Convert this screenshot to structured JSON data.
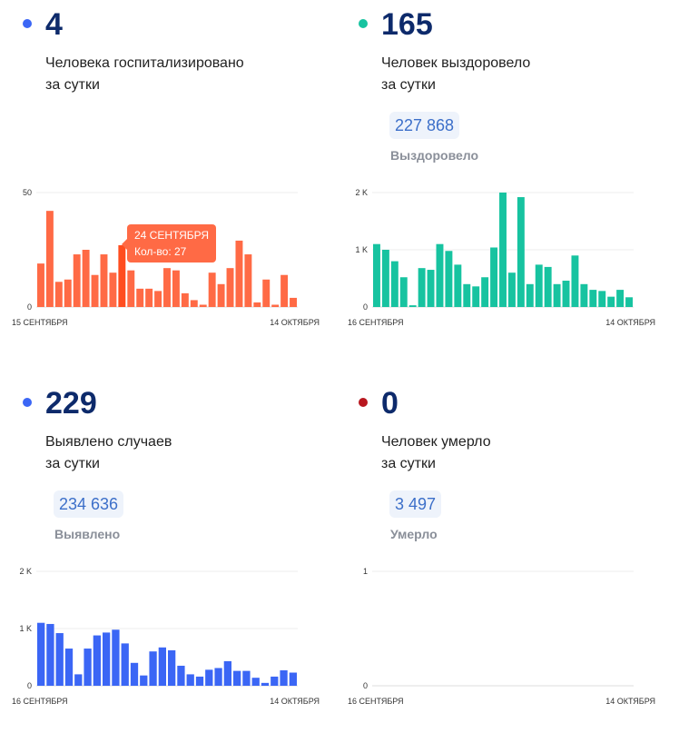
{
  "panels": [
    {
      "value": "4",
      "label": "Человека госпитализировано\nза сутки",
      "total": "",
      "total_label": "",
      "dot_color": "#3b66f5",
      "tooltip": {
        "date": "24 СЕНТЯБРЯ",
        "count": "Кол-во: 27"
      }
    },
    {
      "value": "165",
      "label": "Человек выздоровело\nза сутки",
      "total": "227 868",
      "total_label": "Выздоровело",
      "dot_color": "#17c3a0"
    },
    {
      "value": "229",
      "label": "Выявлено случаев\nза сутки",
      "total": "234 636",
      "total_label": "Выявлено",
      "dot_color": "#3b66f5"
    },
    {
      "value": "0",
      "label": "Человек умерло\nза сутки",
      "total": "3 497",
      "total_label": "Умерло",
      "dot_color": "#b8171f"
    }
  ],
  "chart_data": [
    {
      "type": "bar",
      "x_start": "15 СЕНТЯБРЯ",
      "x_end": "14 ОКТЯБРЯ",
      "yticks": [
        "50",
        "0"
      ],
      "ylim": [
        0,
        50
      ],
      "color": "#ff6a45",
      "highlight_color": "#ff4d1f",
      "highlight_index": 9,
      "values": [
        19,
        42,
        11,
        12,
        23,
        25,
        14,
        23,
        15,
        27,
        16,
        8,
        8,
        7,
        17,
        16,
        6,
        3,
        1,
        15,
        10,
        17,
        29,
        23,
        2,
        12,
        1,
        14,
        4
      ]
    },
    {
      "type": "bar",
      "x_start": "16 СЕНТЯБРЯ",
      "x_end": "14 ОКТЯБРЯ",
      "yticks": [
        "2 K",
        "1 K",
        "0"
      ],
      "ylim": [
        0,
        2000
      ],
      "color": "#17c3a0",
      "values": [
        1100,
        1000,
        800,
        520,
        30,
        680,
        650,
        1100,
        980,
        740,
        400,
        360,
        520,
        1040,
        2000,
        600,
        1920,
        400,
        740,
        700,
        400,
        460,
        900,
        400,
        300,
        280,
        180,
        300,
        170
      ]
    },
    {
      "type": "bar",
      "x_start": "16 СЕНТЯБРЯ",
      "x_end": "14 ОКТЯБРЯ",
      "yticks": [
        "2 K",
        "1 K",
        "0"
      ],
      "ylim": [
        0,
        2000
      ],
      "color": "#3b66f5",
      "values": [
        1100,
        1080,
        920,
        650,
        200,
        650,
        880,
        930,
        980,
        740,
        400,
        180,
        600,
        670,
        620,
        350,
        200,
        160,
        280,
        310,
        430,
        260,
        260,
        140,
        50,
        160,
        270,
        230
      ]
    },
    {
      "type": "bar",
      "x_start": "16 СЕНТЯБРЯ",
      "x_end": "14 ОКТЯБРЯ",
      "yticks": [
        "1",
        "0"
      ],
      "ylim": [
        0,
        1
      ],
      "color": "#b8171f",
      "values": []
    }
  ]
}
